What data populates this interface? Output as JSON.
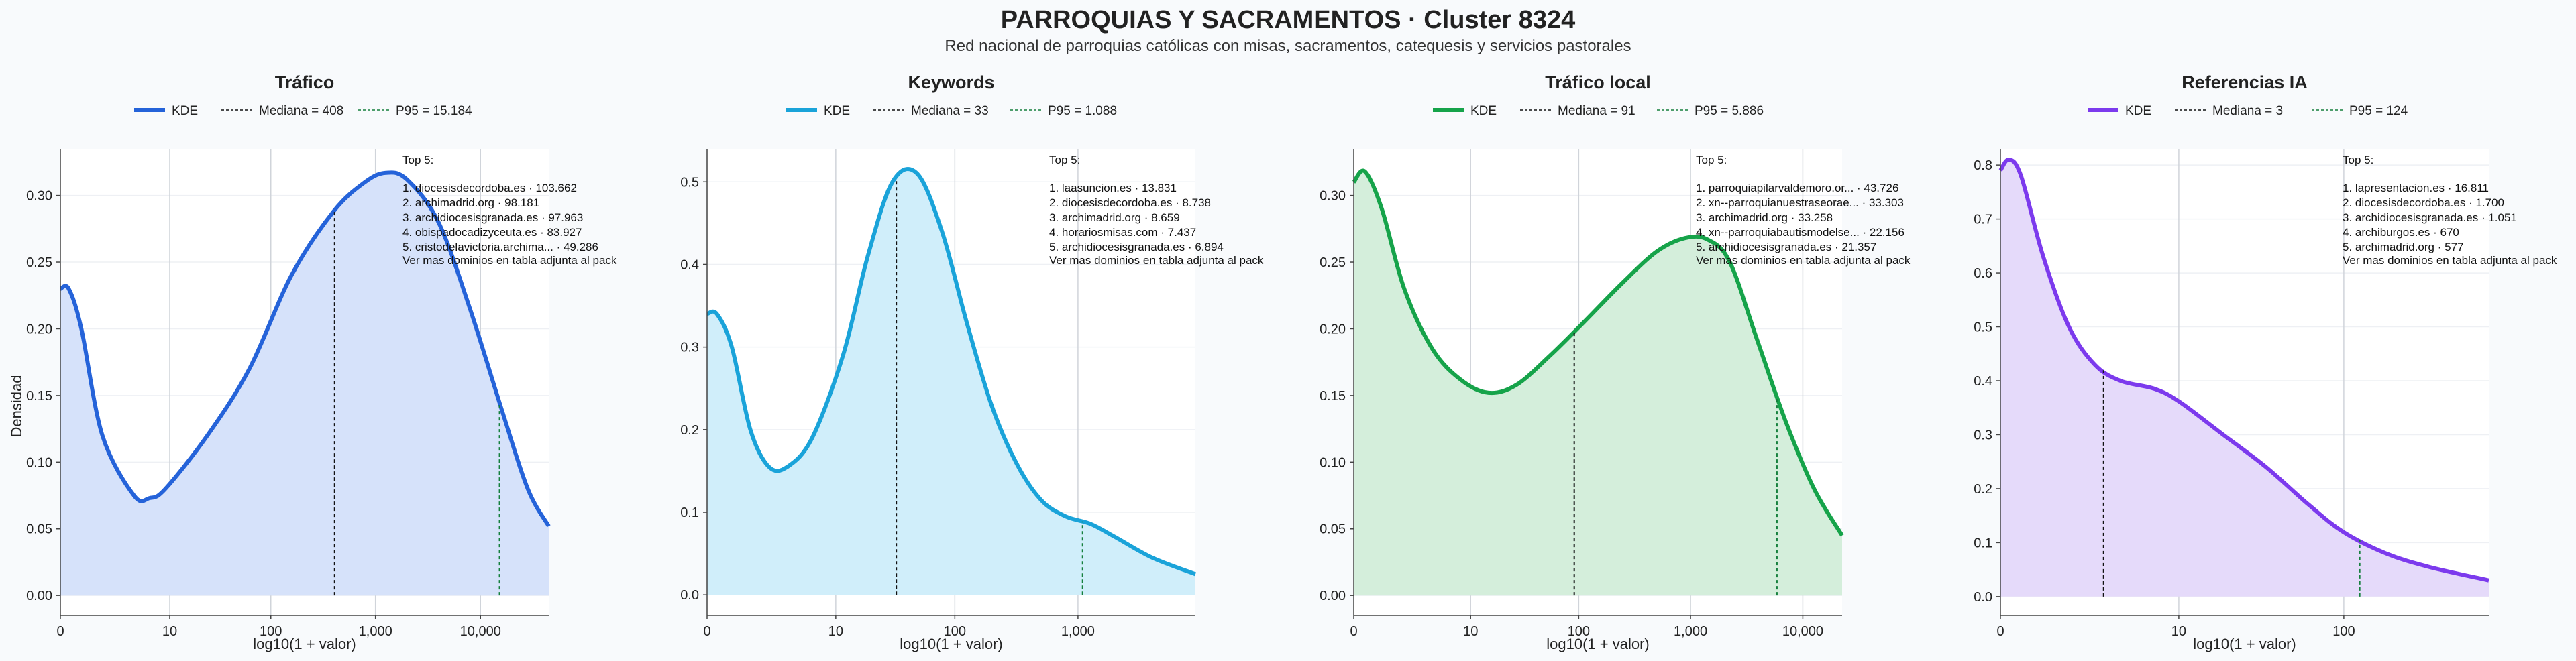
{
  "header": {
    "title": "PARROQUIAS Y SACRAMENTOS · Cluster 8324",
    "subtitle": "Red nacional de parroquias católicas con misas, sacramentos, catequesis y servicios pastorales"
  },
  "common": {
    "xlabel": "log10(1 + valor)",
    "ylabel": "Densidad",
    "legend_kde": "KDE",
    "top_title": "Top 5:",
    "top_footer": "Ver mas dominios en tabla adjunta al pack"
  },
  "chart_data": [
    {
      "type": "area",
      "title": "Tráfico",
      "color": "#2563d9",
      "fill": "#d6e2fa",
      "x_scale": "log10(1+valor)",
      "xlim": [
        0,
        4.65
      ],
      "ylim": [
        -0.015,
        0.335
      ],
      "xticks": [
        {
          "v": 0,
          "label": "0"
        },
        {
          "v": 1.041,
          "label": "10"
        },
        {
          "v": 2.004,
          "label": "100"
        },
        {
          "v": 3.0,
          "label": "1,000"
        },
        {
          "v": 4.0,
          "label": "10,000"
        }
      ],
      "yticks": [
        {
          "v": 0,
          "label": "0.00"
        },
        {
          "v": 0.05,
          "label": "0.05"
        },
        {
          "v": 0.1,
          "label": "0.10"
        },
        {
          "v": 0.15,
          "label": "0.15"
        },
        {
          "v": 0.2,
          "label": "0.20"
        },
        {
          "v": 0.25,
          "label": "0.25"
        },
        {
          "v": 0.3,
          "label": "0.30"
        }
      ],
      "kde": [
        [
          0,
          0.23
        ],
        [
          0.08,
          0.23
        ],
        [
          0.2,
          0.2
        ],
        [
          0.4,
          0.12
        ],
        [
          0.7,
          0.075
        ],
        [
          0.85,
          0.073
        ],
        [
          1.0,
          0.08
        ],
        [
          1.4,
          0.12
        ],
        [
          1.8,
          0.17
        ],
        [
          2.2,
          0.24
        ],
        [
          2.6,
          0.288
        ],
        [
          2.9,
          0.31
        ],
        [
          3.1,
          0.317
        ],
        [
          3.3,
          0.312
        ],
        [
          3.6,
          0.28
        ],
        [
          3.9,
          0.215
        ],
        [
          4.2,
          0.14
        ],
        [
          4.45,
          0.08
        ],
        [
          4.65,
          0.052
        ]
      ],
      "median": {
        "label": "Mediana = 408",
        "x": 2.611
      },
      "p95": {
        "label": "P95 = 15.184",
        "x": 4.181
      },
      "top5": [
        "1. diocesisdecordoba.es · 103.662",
        "2. archimadrid.org · 98.181",
        "3. archidiocesisgranada.es · 97.963",
        "4. obispadocadizyceuta.es · 83.927",
        "5. cristodelavictoria.archima... · 49.286"
      ]
    },
    {
      "type": "area",
      "title": "Keywords",
      "color": "#1aa3d9",
      "fill": "#d0eefa",
      "x_scale": "log10(1+valor)",
      "xlim": [
        0,
        3.95
      ],
      "ylim": [
        -0.025,
        0.54
      ],
      "xticks": [
        {
          "v": 0,
          "label": "0"
        },
        {
          "v": 1.041,
          "label": "10"
        },
        {
          "v": 2.004,
          "label": "100"
        },
        {
          "v": 3.0,
          "label": "1,000"
        }
      ],
      "yticks": [
        {
          "v": 0,
          "label": "0.0"
        },
        {
          "v": 0.1,
          "label": "0.1"
        },
        {
          "v": 0.2,
          "label": "0.2"
        },
        {
          "v": 0.3,
          "label": "0.3"
        },
        {
          "v": 0.4,
          "label": "0.4"
        },
        {
          "v": 0.5,
          "label": "0.5"
        }
      ],
      "kde": [
        [
          0,
          0.34
        ],
        [
          0.08,
          0.34
        ],
        [
          0.2,
          0.3
        ],
        [
          0.35,
          0.2
        ],
        [
          0.5,
          0.155
        ],
        [
          0.65,
          0.155
        ],
        [
          0.85,
          0.19
        ],
        [
          1.1,
          0.29
        ],
        [
          1.3,
          0.41
        ],
        [
          1.5,
          0.5
        ],
        [
          1.7,
          0.51
        ],
        [
          1.9,
          0.44
        ],
        [
          2.1,
          0.33
        ],
        [
          2.3,
          0.23
        ],
        [
          2.5,
          0.16
        ],
        [
          2.7,
          0.115
        ],
        [
          2.9,
          0.095
        ],
        [
          3.1,
          0.086
        ],
        [
          3.3,
          0.07
        ],
        [
          3.6,
          0.045
        ],
        [
          3.95,
          0.025
        ]
      ],
      "median": {
        "label": "Mediana = 33",
        "x": 1.531
      },
      "p95": {
        "label": "P95 = 1.088",
        "x": 3.037
      },
      "top5": [
        "1. laasuncion.es · 13.831",
        "2. diocesisdecordoba.es · 8.738",
        "3. archimadrid.org · 8.659",
        "4. horariosmisas.com · 7.437",
        "5. archidiocesisgranada.es · 6.894"
      ]
    },
    {
      "type": "area",
      "title": "Tráfico local",
      "color": "#16a34a",
      "fill": "#d4eedb",
      "x_scale": "log10(1+valor)",
      "xlim": [
        0,
        4.35
      ],
      "ylim": [
        -0.015,
        0.335
      ],
      "xticks": [
        {
          "v": 0,
          "label": "0"
        },
        {
          "v": 1.041,
          "label": "10"
        },
        {
          "v": 2.004,
          "label": "100"
        },
        {
          "v": 3.0,
          "label": "1,000"
        },
        {
          "v": 4.0,
          "label": "10,000"
        }
      ],
      "yticks": [
        {
          "v": 0,
          "label": "0.00"
        },
        {
          "v": 0.05,
          "label": "0.05"
        },
        {
          "v": 0.1,
          "label": "0.10"
        },
        {
          "v": 0.15,
          "label": "0.15"
        },
        {
          "v": 0.2,
          "label": "0.20"
        },
        {
          "v": 0.25,
          "label": "0.25"
        },
        {
          "v": 0.3,
          "label": "0.30"
        }
      ],
      "kde": [
        [
          0,
          0.31
        ],
        [
          0.1,
          0.318
        ],
        [
          0.25,
          0.29
        ],
        [
          0.45,
          0.23
        ],
        [
          0.7,
          0.185
        ],
        [
          0.95,
          0.162
        ],
        [
          1.2,
          0.152
        ],
        [
          1.45,
          0.158
        ],
        [
          1.75,
          0.18
        ],
        [
          2.05,
          0.205
        ],
        [
          2.4,
          0.235
        ],
        [
          2.7,
          0.258
        ],
        [
          2.95,
          0.268
        ],
        [
          3.15,
          0.267
        ],
        [
          3.35,
          0.25
        ],
        [
          3.6,
          0.19
        ],
        [
          3.85,
          0.13
        ],
        [
          4.1,
          0.08
        ],
        [
          4.35,
          0.045
        ]
      ],
      "median": {
        "label": "Mediana = 91",
        "x": 1.964
      },
      "p95": {
        "label": "P95 = 5.886",
        "x": 3.77
      },
      "top5": [
        "1. parroquiapilarvaldemoro.or... · 43.726",
        "2. xn--parroquianuestraseorae... · 33.303",
        "3. archimadrid.org · 33.258",
        "4. xn--parroquiabautismodelse... · 22.156",
        "5. archidiocesisgranada.es · 21.357"
      ]
    },
    {
      "type": "area",
      "title": "Referencias IA",
      "color": "#7c3aed",
      "fill": "#e5dafa",
      "x_scale": "log10(1+valor)",
      "xlim": [
        0,
        2.85
      ],
      "ylim": [
        -0.035,
        0.83
      ],
      "xticks": [
        {
          "v": 0,
          "label": "0"
        },
        {
          "v": 1.041,
          "label": "10"
        },
        {
          "v": 2.004,
          "label": "100"
        }
      ],
      "yticks": [
        {
          "v": 0,
          "label": "0.0"
        },
        {
          "v": 0.1,
          "label": "0.1"
        },
        {
          "v": 0.2,
          "label": "0.2"
        },
        {
          "v": 0.3,
          "label": "0.3"
        },
        {
          "v": 0.4,
          "label": "0.4"
        },
        {
          "v": 0.5,
          "label": "0.5"
        },
        {
          "v": 0.6,
          "label": "0.6"
        },
        {
          "v": 0.7,
          "label": "0.7"
        },
        {
          "v": 0.8,
          "label": "0.8"
        }
      ],
      "kde": [
        [
          0,
          0.79
        ],
        [
          0.05,
          0.81
        ],
        [
          0.12,
          0.78
        ],
        [
          0.25,
          0.63
        ],
        [
          0.4,
          0.5
        ],
        [
          0.55,
          0.43
        ],
        [
          0.7,
          0.4
        ],
        [
          0.9,
          0.385
        ],
        [
          1.05,
          0.36
        ],
        [
          1.3,
          0.3
        ],
        [
          1.55,
          0.24
        ],
        [
          1.8,
          0.17
        ],
        [
          2.0,
          0.12
        ],
        [
          2.25,
          0.08
        ],
        [
          2.5,
          0.055
        ],
        [
          2.85,
          0.03
        ]
      ],
      "median": {
        "label": "Mediana = 3",
        "x": 0.602
      },
      "p95": {
        "label": "P95 = 124",
        "x": 2.097
      },
      "top5": [
        "1. lapresentacion.es · 16.811",
        "2. diocesisdecordoba.es · 1.700",
        "3. archidiocesisgranada.es · 1.051",
        "4. archiburgos.es · 670",
        "5. archimadrid.org · 577"
      ]
    }
  ]
}
